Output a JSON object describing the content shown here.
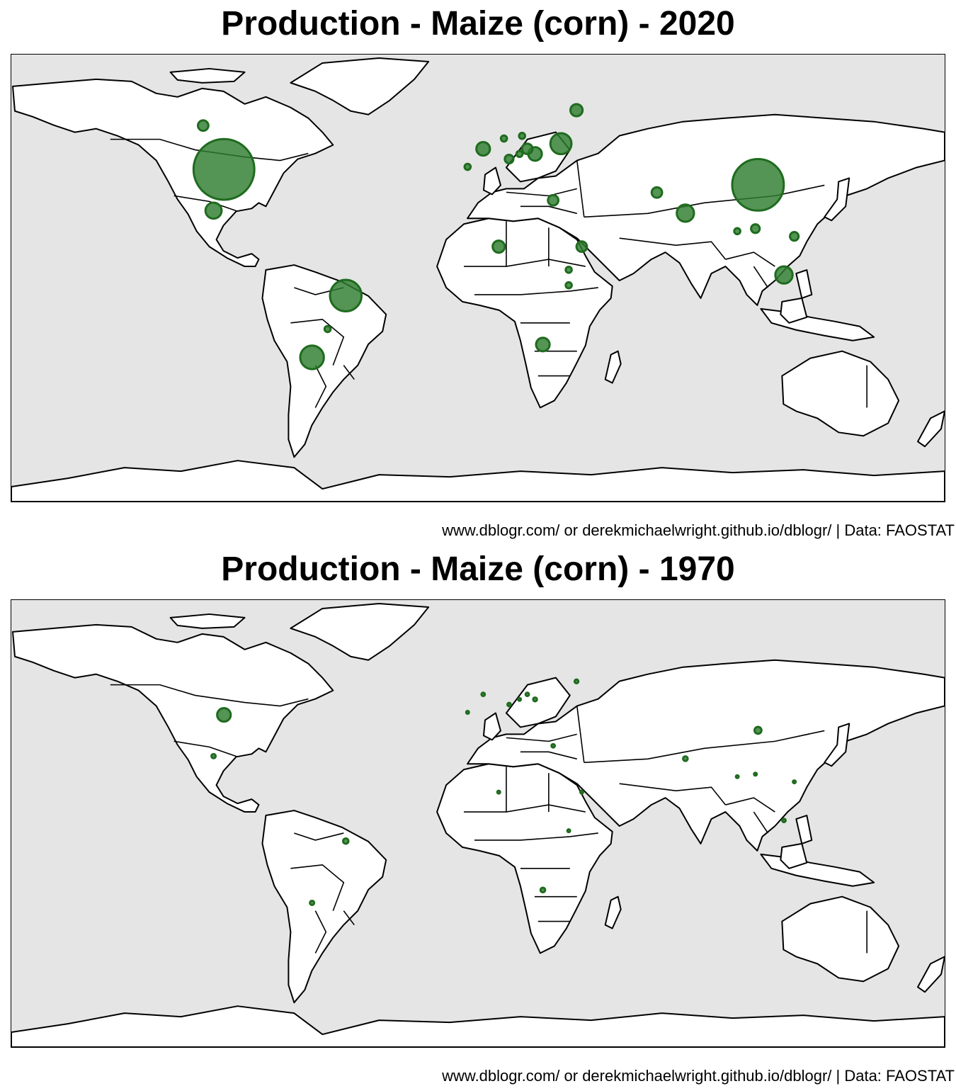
{
  "colors": {
    "ocean": "#e5e5e5",
    "land": "#ffffff",
    "outline": "#000000",
    "bubble_fill": "#2e7d2e",
    "bubble_stroke": "#1f6b1f"
  },
  "panels": [
    {
      "title": "Production - Maize (corn) - 2020",
      "caption": "www.dblogr.com/ or derekmichaelwright.github.io/dblogr/ | Data: FAOSTAT",
      "chart_data": {
        "type": "map",
        "projection": "equirectangular",
        "measure": "maize production (bubble area)",
        "points": [
          {
            "lon": -98,
            "lat": 39,
            "v": 100
          },
          {
            "lon": 108,
            "lat": 33,
            "v": 72
          },
          {
            "lon": -51,
            "lat": -10,
            "v": 27
          },
          {
            "lon": -64,
            "lat": -34,
            "v": 15
          },
          {
            "lon": 32,
            "lat": 49,
            "v": 12
          },
          {
            "lon": 80,
            "lat": 22,
            "v": 8
          },
          {
            "lon": 118,
            "lat": -2,
            "v": 8
          },
          {
            "lon": -102,
            "lat": 23,
            "v": 7
          },
          {
            "lon": 25,
            "lat": -29,
            "v": 5
          },
          {
            "lon": 22,
            "lat": 45,
            "v": 5
          },
          {
            "lon": 2,
            "lat": 47,
            "v": 5
          },
          {
            "lon": 38,
            "lat": 62,
            "v": 4
          },
          {
            "lon": 19,
            "lat": 47,
            "v": 3
          },
          {
            "lon": 8,
            "lat": 9,
            "v": 4
          },
          {
            "lon": 29,
            "lat": 27,
            "v": 3
          },
          {
            "lon": -106,
            "lat": 56,
            "v": 3
          },
          {
            "lon": 40,
            "lat": 9,
            "v": 3
          },
          {
            "lon": 69,
            "lat": 30,
            "v": 3
          },
          {
            "lon": 12,
            "lat": 43,
            "v": 2
          },
          {
            "lon": 122,
            "lat": 13,
            "v": 2
          },
          {
            "lon": 107,
            "lat": 16,
            "v": 2
          },
          {
            "lon": -4,
            "lat": 40,
            "v": 1
          },
          {
            "lon": 35,
            "lat": -6,
            "v": 1
          },
          {
            "lon": -58,
            "lat": -23,
            "v": 1
          },
          {
            "lon": 17,
            "lat": 52,
            "v": 1
          },
          {
            "lon": 10,
            "lat": 51,
            "v": 1
          },
          {
            "lon": 16,
            "lat": 45,
            "v": 1
          },
          {
            "lon": 35,
            "lat": 0,
            "v": 1
          },
          {
            "lon": 100,
            "lat": 15,
            "v": 1
          }
        ]
      }
    },
    {
      "title": "Production - Maize (corn) - 1970",
      "caption": "www.dblogr.com/ or derekmichaelwright.github.io/dblogr/ | Data: FAOSTAT",
      "chart_data": {
        "type": "map",
        "projection": "equirectangular",
        "measure": "maize production (bubble area)",
        "points": [
          {
            "lon": -98,
            "lat": 39,
            "v": 5
          },
          {
            "lon": 108,
            "lat": 33,
            "v": 1.3
          },
          {
            "lon": -51,
            "lat": -10,
            "v": 0.8
          },
          {
            "lon": 80,
            "lat": 22,
            "v": 0.6
          },
          {
            "lon": 25,
            "lat": -29,
            "v": 0.6
          },
          {
            "lon": -64,
            "lat": -34,
            "v": 0.5
          },
          {
            "lon": -102,
            "lat": 23,
            "v": 0.5
          },
          {
            "lon": 38,
            "lat": 52,
            "v": 0.4
          },
          {
            "lon": 22,
            "lat": 45,
            "v": 0.4
          },
          {
            "lon": 19,
            "lat": 47,
            "v": 0.3
          },
          {
            "lon": 12,
            "lat": 43,
            "v": 0.3
          },
          {
            "lon": 2,
            "lat": 47,
            "v": 0.3
          },
          {
            "lon": 118,
            "lat": -2,
            "v": 0.3
          },
          {
            "lon": 29,
            "lat": 27,
            "v": 0.3
          },
          {
            "lon": 8,
            "lat": 9,
            "v": 0.2
          },
          {
            "lon": 122,
            "lat": 13,
            "v": 0.2
          },
          {
            "lon": 100,
            "lat": 15,
            "v": 0.2
          },
          {
            "lon": 35,
            "lat": -6,
            "v": 0.2
          },
          {
            "lon": 40,
            "lat": 9,
            "v": 0.2
          },
          {
            "lon": -4,
            "lat": 40,
            "v": 0.2
          },
          {
            "lon": 16,
            "lat": 45,
            "v": 0.2
          },
          {
            "lon": 107,
            "lat": 16,
            "v": 0.2
          }
        ]
      }
    }
  ]
}
